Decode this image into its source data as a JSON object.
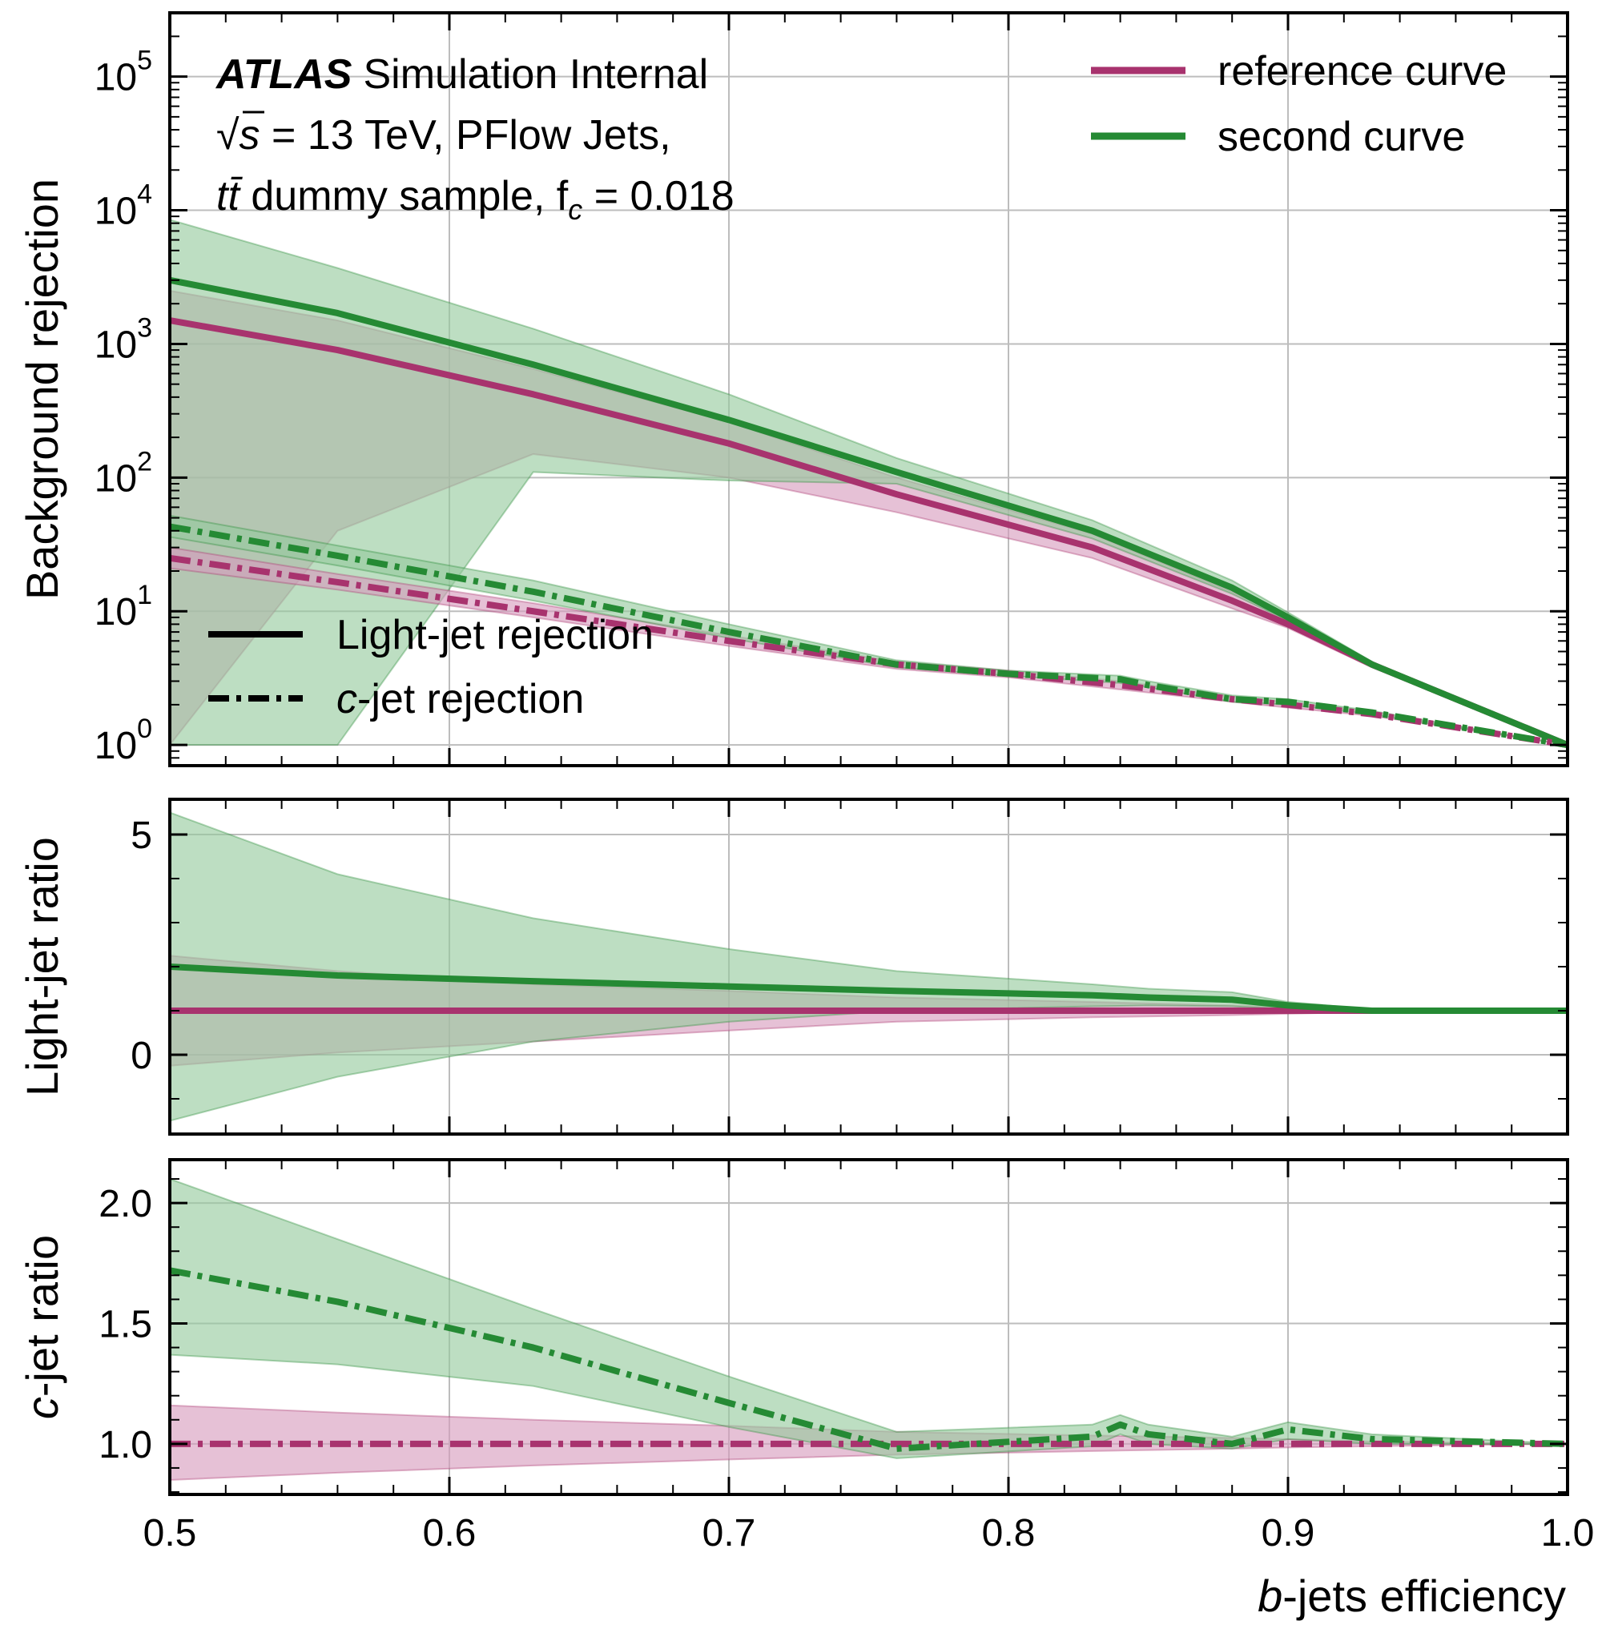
{
  "colors": {
    "reference": "#a8336e",
    "second": "#258a34",
    "reference_band": "#d79bbd",
    "second_band": "#95c99c",
    "grid": "#bdbdbd"
  },
  "chart_data": [
    {
      "panel": "main",
      "type": "line",
      "xlabel": "b-jets efficiency",
      "ylabel": "Background rejection",
      "log_y": true,
      "xlim": [
        0.5,
        1.0
      ],
      "ylim": [
        0.7,
        300000
      ],
      "grid": true,
      "x_ticks": [
        "0.5",
        "0.6",
        "0.7",
        "0.8",
        "0.9",
        "1.0"
      ],
      "y_tick_base": "10",
      "y_tick_exponents": [
        "0",
        "1",
        "2",
        "3",
        "4",
        "5"
      ],
      "annotation": {
        "experiment": "ATLAS",
        "status": "Simulation Internal",
        "line2_prefix": "√s",
        "line2_text": " = 13 TeV, PFlow Jets,",
        "line3_sample": "tt̄",
        "line3_text": " dummy sample, f",
        "line3_sub": "c",
        "line3_value": " = 0.018"
      },
      "legend_models": [
        "reference curve",
        "second curve"
      ],
      "legend_styles": {
        "light_prefix": "Light-jet rejection",
        "c_var": "c",
        "c_suffix": "-jet rejection"
      },
      "legend_placement": [
        "upper-right",
        "lower-left"
      ],
      "series": [
        {
          "name": "reference curve",
          "kind": "light",
          "style": "solid",
          "x": [
            0.5,
            0.56,
            0.63,
            0.7,
            0.76,
            0.83,
            0.88,
            0.9,
            0.93,
            1.0
          ],
          "y": [
            1500,
            900,
            420,
            180,
            75,
            30,
            12,
            8,
            4,
            1
          ],
          "y_low": [
            1,
            40,
            150,
            100,
            55,
            25,
            10.5,
            7.5,
            3.8,
            1
          ],
          "y_high": [
            2500,
            1500,
            650,
            260,
            100,
            38,
            14,
            9,
            4.2,
            1
          ]
        },
        {
          "name": "second curve",
          "kind": "light",
          "style": "solid",
          "x": [
            0.5,
            0.56,
            0.63,
            0.7,
            0.76,
            0.83,
            0.88,
            0.9,
            0.93,
            1.0
          ],
          "y": [
            3000,
            1700,
            700,
            270,
            110,
            40,
            15,
            9,
            4,
            1
          ],
          "y_low": [
            1,
            1,
            110,
            95,
            90,
            35,
            13.5,
            8.5,
            3.9,
            1
          ],
          "y_high": [
            8500,
            3700,
            1300,
            420,
            140,
            48,
            17,
            9.8,
            4.2,
            1
          ]
        },
        {
          "name": "reference curve",
          "kind": "c",
          "style": "dashdot",
          "x": [
            0.5,
            0.56,
            0.63,
            0.7,
            0.76,
            0.8,
            0.84,
            0.88,
            0.9,
            0.93,
            1.0
          ],
          "y": [
            25,
            16.5,
            10,
            6,
            4,
            3.4,
            2.8,
            2.2,
            2,
            1.7,
            1
          ],
          "y_low": [
            21,
            14.5,
            9,
            5.5,
            3.7,
            3.2,
            2.6,
            2.1,
            1.9,
            1.65,
            1
          ],
          "y_high": [
            30,
            19,
            11.5,
            6.6,
            4.2,
            3.6,
            3,
            2.3,
            2.1,
            1.75,
            1
          ]
        },
        {
          "name": "second curve",
          "kind": "c",
          "style": "dashdot",
          "x": [
            0.5,
            0.56,
            0.63,
            0.7,
            0.76,
            0.8,
            0.84,
            0.85,
            0.88,
            0.9,
            0.93,
            1.0
          ],
          "y": [
            43,
            26,
            14,
            7,
            4,
            3.4,
            3.1,
            2.8,
            2.2,
            2.1,
            1.75,
            1
          ],
          "y_low": [
            36,
            22,
            12,
            6.3,
            3.8,
            3.3,
            2.9,
            2.7,
            2.1,
            2,
            1.7,
            1
          ],
          "y_high": [
            52,
            31,
            17,
            8,
            4.3,
            3.6,
            3.3,
            3,
            2.35,
            2.2,
            1.8,
            1
          ]
        }
      ]
    },
    {
      "panel": "light_ratio",
      "type": "line",
      "ylabel": "Light-jet ratio",
      "xlim": [
        0.5,
        1.0
      ],
      "ylim": [
        -1.8,
        5.8
      ],
      "y_ticks": [
        "0",
        "5"
      ],
      "grid": true,
      "series": [
        {
          "name": "reference curve",
          "style": "solid",
          "x": [
            0.5,
            0.56,
            0.63,
            0.7,
            0.76,
            0.83,
            0.88,
            0.9,
            0.93,
            1.0
          ],
          "y": [
            1,
            1,
            1,
            1,
            1,
            1,
            1,
            1,
            1,
            1
          ],
          "y_low": [
            -0.25,
            0.05,
            0.3,
            0.55,
            0.75,
            0.85,
            0.9,
            0.93,
            0.97,
            1
          ],
          "y_high": [
            2.25,
            1.9,
            1.6,
            1.45,
            1.3,
            1.2,
            1.12,
            1.08,
            1.04,
            1
          ]
        },
        {
          "name": "second curve",
          "style": "solid",
          "x": [
            0.5,
            0.56,
            0.63,
            0.7,
            0.76,
            0.83,
            0.85,
            0.88,
            0.9,
            0.93,
            1.0
          ],
          "y": [
            2.0,
            1.8,
            1.67,
            1.55,
            1.45,
            1.35,
            1.3,
            1.25,
            1.12,
            1.0,
            1.0
          ],
          "y_low": [
            -1.5,
            -0.5,
            0.3,
            0.75,
            1.0,
            1.1,
            1.12,
            1.1,
            1.03,
            0.97,
            1
          ],
          "y_high": [
            5.5,
            4.1,
            3.1,
            2.4,
            1.9,
            1.6,
            1.5,
            1.42,
            1.2,
            1.03,
            1
          ]
        }
      ]
    },
    {
      "panel": "c_ratio",
      "type": "line",
      "ylabel_var": "c",
      "ylabel": "-jet ratio",
      "xlim": [
        0.5,
        1.0
      ],
      "ylim": [
        0.79,
        2.18
      ],
      "y_ticks": [
        "1.0",
        "1.5",
        "2.0"
      ],
      "grid": true,
      "series": [
        {
          "name": "reference curve",
          "style": "dashdot",
          "x": [
            0.5,
            0.56,
            0.63,
            0.7,
            0.76,
            0.83,
            0.88,
            0.9,
            0.93,
            1.0
          ],
          "y": [
            1,
            1,
            1,
            1,
            1,
            1,
            1,
            1,
            1,
            1
          ],
          "y_low": [
            0.85,
            0.88,
            0.91,
            0.935,
            0.955,
            0.97,
            0.98,
            0.985,
            0.99,
            1
          ],
          "y_high": [
            1.16,
            1.13,
            1.1,
            1.075,
            1.05,
            1.035,
            1.025,
            1.02,
            1.01,
            1
          ]
        },
        {
          "name": "second curve",
          "style": "dashdot",
          "x": [
            0.5,
            0.56,
            0.63,
            0.7,
            0.76,
            0.83,
            0.84,
            0.85,
            0.88,
            0.9,
            0.93,
            1.0
          ],
          "y": [
            1.72,
            1.59,
            1.4,
            1.17,
            0.98,
            1.03,
            1.08,
            1.04,
            1.0,
            1.06,
            1.02,
            1.0
          ],
          "y_low": [
            1.37,
            1.33,
            1.24,
            1.07,
            0.94,
            0.99,
            1.04,
            1.0,
            0.98,
            1.02,
            1.0,
            1.0
          ],
          "y_high": [
            2.1,
            1.85,
            1.56,
            1.28,
            1.05,
            1.08,
            1.12,
            1.08,
            1.03,
            1.09,
            1.04,
            1.0
          ]
        }
      ]
    }
  ]
}
